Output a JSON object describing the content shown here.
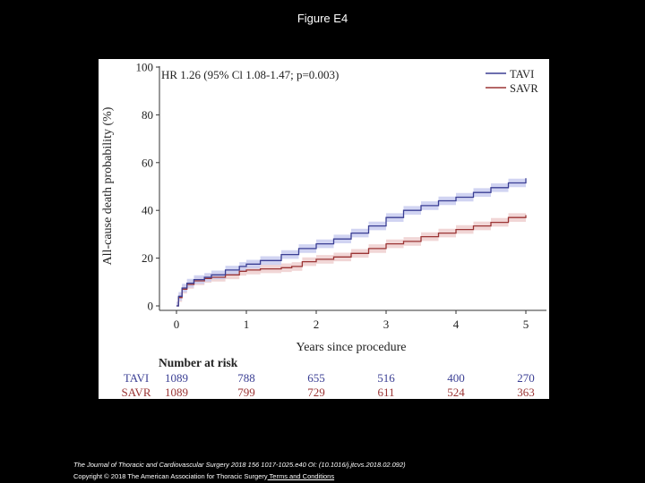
{
  "slide": {
    "title": "Figure E4",
    "citation": "The Journal of Thoracic and Cardiovascular Surgery 2018 156 1017-1025.e40 OI: (10.1016/j.jtcvs.2018.02.092)",
    "copyright_prefix": "Copyright © 2018 The American Association for Thoracic Surgery",
    "copyright_link": " Terms and Conditions"
  },
  "colors": {
    "tavi": "#3b3f94",
    "savr": "#9b3535",
    "tavi_band": "#c9cdf0",
    "savr_band": "#efcfcf"
  },
  "chart_data": {
    "type": "line",
    "annotation": "HR 1.26 (95% Cl 1.08-1.47; p=0.003)",
    "xlabel": "Years since procedure",
    "ylabel": "All-cause death probability (%)",
    "xlim": [
      0,
      5
    ],
    "ylim": [
      0,
      100
    ],
    "x_ticks": [
      0,
      1,
      2,
      3,
      4,
      5
    ],
    "y_ticks": [
      0,
      20,
      40,
      60,
      80,
      100
    ],
    "legend": [
      "TAVI",
      "SAVR"
    ],
    "series": [
      {
        "name": "TAVI",
        "x": [
          0,
          0.03,
          0.08,
          0.15,
          0.25,
          0.4,
          0.5,
          0.7,
          0.9,
          1.0,
          1.2,
          1.5,
          1.75,
          2.0,
          2.25,
          2.5,
          2.75,
          3.0,
          3.25,
          3.5,
          3.75,
          4.0,
          4.25,
          4.5,
          4.75,
          5.0
        ],
        "y": [
          0,
          4,
          7.5,
          9.5,
          11,
          12,
          13,
          15,
          16.5,
          17.5,
          19,
          21.5,
          24,
          26,
          28,
          30.5,
          33.5,
          37,
          40,
          42,
          44,
          45.5,
          47.5,
          49.5,
          51.5,
          53.5
        ],
        "ci_half_width": 1.8
      },
      {
        "name": "SAVR",
        "x": [
          0,
          0.03,
          0.08,
          0.15,
          0.25,
          0.4,
          0.5,
          0.7,
          0.9,
          1.0,
          1.2,
          1.5,
          1.65,
          1.8,
          2.0,
          2.25,
          2.5,
          2.75,
          3.0,
          3.25,
          3.5,
          3.75,
          4.0,
          4.25,
          4.5,
          4.75,
          5.0
        ],
        "y": [
          0,
          3.5,
          7,
          9,
          10.5,
          11.5,
          12,
          13,
          14.5,
          15,
          15.5,
          16,
          16.5,
          18.5,
          19.5,
          20.5,
          22,
          24,
          26,
          27,
          29,
          30.5,
          32,
          33.5,
          35,
          37,
          38
        ],
        "ci_half_width": 1.8
      }
    ],
    "risk_table": {
      "title": "Number at risk",
      "rows": [
        {
          "label": "TAVI",
          "values": [
            1089,
            788,
            655,
            516,
            400,
            270
          ]
        },
        {
          "label": "SAVR",
          "values": [
            1089,
            799,
            729,
            611,
            524,
            363
          ]
        }
      ]
    }
  }
}
